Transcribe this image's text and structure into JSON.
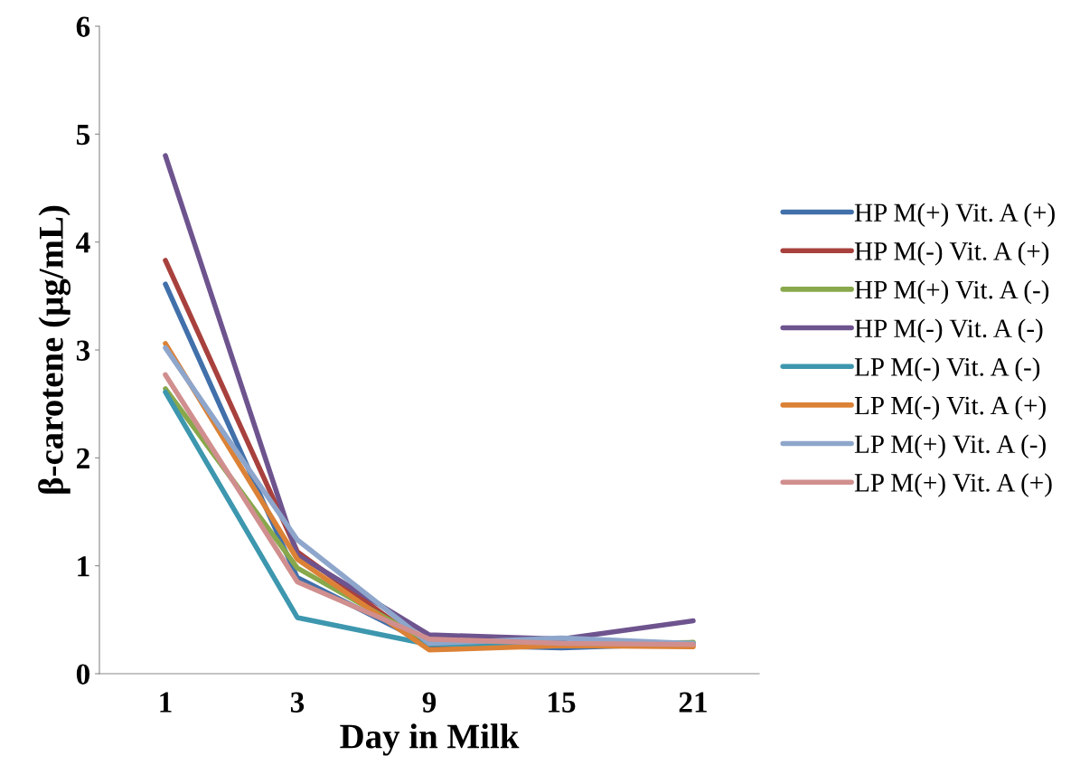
{
  "chart_data": {
    "type": "line",
    "xlabel": "Day in Milk",
    "ylabel": "β-carotene (µg/mL)",
    "categories": [
      "1",
      "3",
      "9",
      "15",
      "21"
    ],
    "ylim": [
      0,
      6
    ],
    "yticks": [
      0,
      1,
      2,
      3,
      4,
      5,
      6
    ],
    "grid": false,
    "legend": "right",
    "line_style": "solid",
    "marker": "none",
    "series": [
      {
        "name": "HP M(+) Vit. A (+)",
        "color": "#4170aa",
        "values": [
          3.61,
          0.89,
          0.27,
          0.24,
          0.28
        ]
      },
      {
        "name": "HP M(-) Vit. A (+)",
        "color": "#a8413d",
        "values": [
          3.83,
          1.13,
          0.24,
          0.27,
          0.27
        ]
      },
      {
        "name": "HP M(+) Vit. A (-)",
        "color": "#88a84b",
        "values": [
          2.64,
          0.98,
          0.29,
          0.27,
          0.29
        ]
      },
      {
        "name": "HP M(-) Vit. A (-)",
        "color": "#6e548e",
        "values": [
          4.8,
          1.1,
          0.36,
          0.32,
          0.49
        ]
      },
      {
        "name": "LP M(-) Vit. A (-)",
        "color": "#3d97ae",
        "values": [
          2.61,
          0.52,
          0.27,
          0.27,
          0.28
        ]
      },
      {
        "name": "LP M(-) Vit. A (+)",
        "color": "#db8237",
        "values": [
          3.06,
          1.06,
          0.22,
          0.26,
          0.25
        ]
      },
      {
        "name": "LP M(+) Vit. A (-)",
        "color": "#8ea6cb",
        "values": [
          3.02,
          1.24,
          0.28,
          0.33,
          0.28
        ]
      },
      {
        "name": "LP M(+) Vit. A (+)",
        "color": "#d08f8e",
        "values": [
          2.77,
          0.85,
          0.32,
          0.28,
          0.27
        ]
      }
    ]
  }
}
